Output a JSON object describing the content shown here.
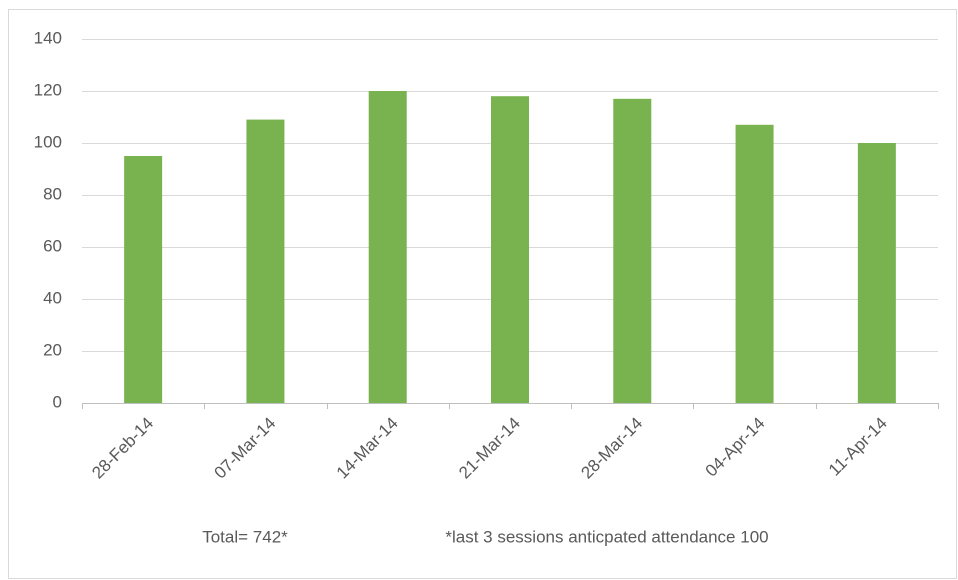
{
  "chart_data": {
    "type": "bar",
    "categories": [
      "28-Feb-14",
      "07-Mar-14",
      "14-Mar-14",
      "21-Mar-14",
      "28-Mar-14",
      "04-Apr-14",
      "11-Apr-14"
    ],
    "values": [
      95,
      109,
      120,
      118,
      117,
      107,
      100
    ],
    "color": "#78b350",
    "ylim": [
      0,
      140
    ],
    "yticks": [
      0,
      20,
      40,
      60,
      80,
      100,
      120,
      140
    ],
    "grid": true,
    "annotations": [
      "Total= 742*",
      "*last 3 sessions anticpated attendance 100"
    ]
  }
}
